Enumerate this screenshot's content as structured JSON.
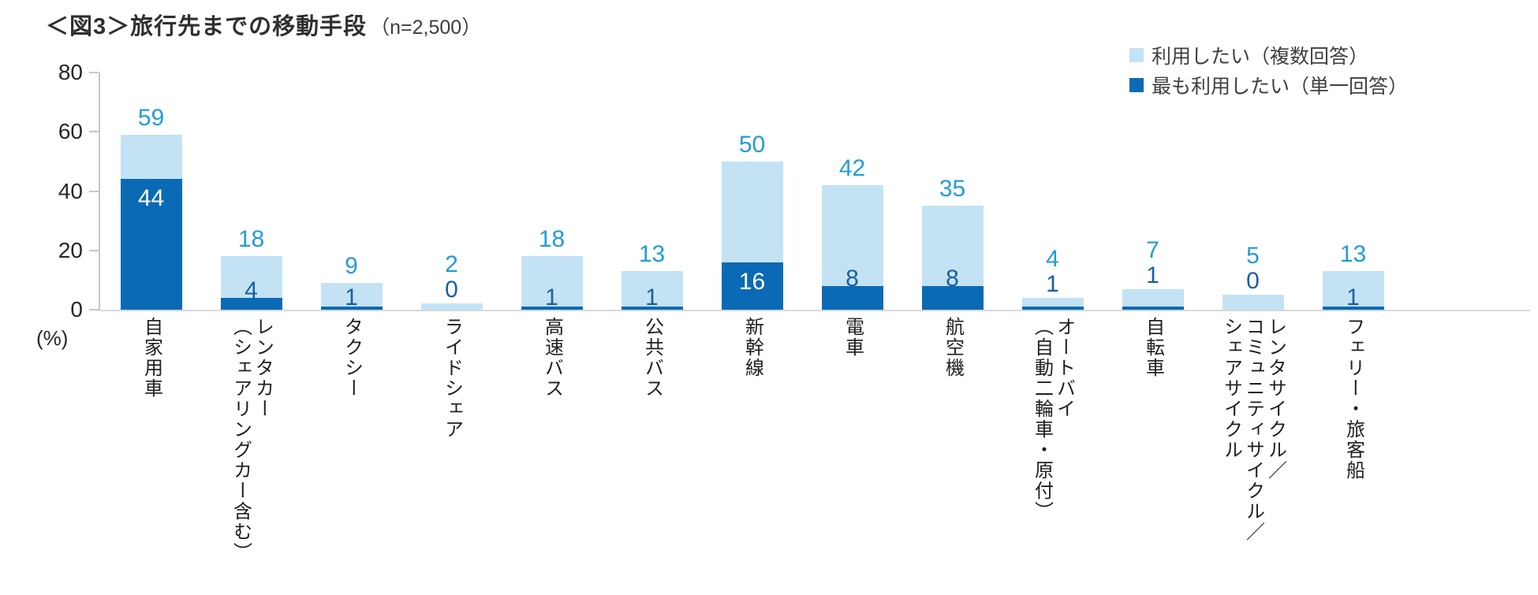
{
  "header": {
    "title": "＜図3＞旅行先までの移動手段",
    "sample_note": "（n=2,500）"
  },
  "legend": {
    "items": [
      {
        "label": "利用したい（複数回答）",
        "color": "#c3e3f5"
      },
      {
        "label": "最も利用したい（単一回答）",
        "color": "#0a6ab5"
      }
    ]
  },
  "chart_data": {
    "type": "bar",
    "subtype": "overlapped-bars",
    "title": "＜図3＞旅行先までの移動手段（n=2,500）",
    "xlabel": "",
    "ylabel": "(%)",
    "ylim": [
      0,
      80
    ],
    "yticks": [
      0,
      20,
      40,
      60,
      80
    ],
    "grid": false,
    "legend_position": "top-right",
    "categories": [
      "自家用車",
      "レンタカー（シェアリングカー含む）",
      "タクシー",
      "ライドシェア",
      "高速バス",
      "公共バス",
      "新幹線",
      "電車",
      "航空機",
      "オートバイ（自動二輪車・原付）",
      "自転車",
      "レンタサイクル／コミュニティサイクル／シェアサイクル",
      "フェリー・旅客船"
    ],
    "category_lines": [
      [
        "自家用車"
      ],
      [
        "レンタカー",
        "（シェアリングカー含む）"
      ],
      [
        "タクシー"
      ],
      [
        "ライドシェア"
      ],
      [
        "高速バス"
      ],
      [
        "公共バス"
      ],
      [
        "新幹線"
      ],
      [
        "電車"
      ],
      [
        "航空機"
      ],
      [
        "オートバイ",
        "（自動二輪車・原付）"
      ],
      [
        "自転車"
      ],
      [
        "レンタサイクル／",
        "コミュニティサイクル／",
        "シェアサイクル"
      ],
      [
        "フェリー・旅客船"
      ]
    ],
    "series": [
      {
        "name": "利用したい（複数回答）",
        "color": "#c3e3f5",
        "label_color": "#219cd8",
        "values": [
          59,
          18,
          9,
          2,
          18,
          13,
          50,
          42,
          35,
          4,
          7,
          5,
          13
        ]
      },
      {
        "name": "最も利用したい（単一回答）",
        "color": "#0a6ab5",
        "label_color": "#1b5fa0",
        "label_color_inside": "#ffffff",
        "values": [
          44,
          4,
          1,
          0,
          1,
          1,
          16,
          8,
          8,
          1,
          1,
          0,
          1
        ]
      }
    ]
  },
  "colors": {
    "axis": "#c6c6c6",
    "baseline": "#d9d9d9",
    "tick_text": "#262626",
    "category_text": "#1f1f1f",
    "title_text": "#2f2f2f"
  }
}
